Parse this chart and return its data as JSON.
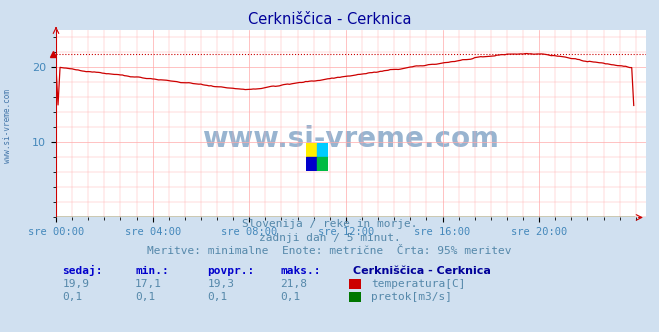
{
  "title": "Cerkniščica - Cerknica",
  "title_color": "#000099",
  "bg_color": "#d0e0f0",
  "plot_bg_color": "#ffffff",
  "grid_color": "#ffaaaa",
  "x_label_color": "#4488bb",
  "y_label_color": "#4488bb",
  "xlim": [
    0,
    287
  ],
  "ylim": [
    0,
    25
  ],
  "yticks": [
    10,
    20
  ],
  "x_tick_labels": [
    "sre 00:00",
    "sre 04:00",
    "sre 08:00",
    "sre 12:00",
    "sre 16:00",
    "sre 20:00"
  ],
  "x_tick_positions": [
    0,
    48,
    96,
    144,
    192,
    240
  ],
  "temp_color": "#cc0000",
  "flow_color": "#007700",
  "max_line_color": "#cc0000",
  "max_val": 21.8,
  "min_val": 17.1,
  "avg_val": 19.3,
  "cur_val": 19.9,
  "min_flow": 0.1,
  "avg_flow": 0.1,
  "max_flow": 0.1,
  "cur_flow": 0.1,
  "subtitle1": "Slovenija / reke in morje.",
  "subtitle2": "zadnji dan / 5 minut.",
  "subtitle3": "Meritve: minimalne  Enote: metrične  Črta: 95% meritev",
  "subtitle_color": "#5588aa",
  "legend_title": "Cerkniščica - Cerknica",
  "legend_title_color": "#000099",
  "label_color": "#0000cc",
  "value_color": "#5588aa",
  "watermark": "www.si-vreme.com",
  "watermark_color": "#4477aa",
  "side_text": "www.si-vreme.com",
  "side_text_color": "#4477aa",
  "logo_colors": [
    "#ffee00",
    "#00ccff",
    "#0000cc",
    "#00bb44"
  ]
}
